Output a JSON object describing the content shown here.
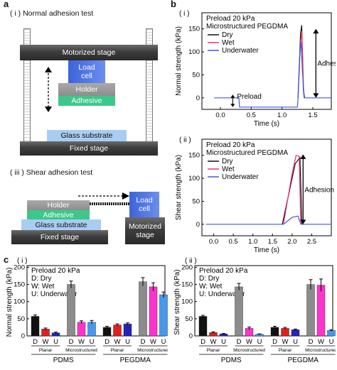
{
  "panel_a": {
    "letter": "a",
    "normal_title": "( i ) Normal adhesion test",
    "shear_title": "( iii ) Shear adhesion test",
    "motorized_stage": "Motorized stage",
    "load_cell": "Load cell",
    "holder": "Holder",
    "adhesive": "Adhesive",
    "glass_substrate": "Glass substrate",
    "fixed_stage": "Fixed stage",
    "shear_holder": "Holder",
    "shear_adhesive": "Adhesive",
    "shear_glass": "Glass substrate",
    "shear_fixed": "Fixed stage",
    "shear_load_cell": "Load cell",
    "shear_motorized": "Motorized stage"
  },
  "panel_b": {
    "letter": "b",
    "colors": {
      "dry": "#111111",
      "wet": "#e8336a",
      "underwater": "#4455dd"
    },
    "chart_data": [
      {
        "type": "line",
        "label": "( i )",
        "annotation_lines": [
          "Preload 20 kPa",
          "Microstructured PEGDMA"
        ],
        "legend": [
          "Dry",
          "Wet",
          "Underwater"
        ],
        "xlabel": "Time (s)",
        "ylabel": "Normal strength (kPa)",
        "xlim": [
          -0.3,
          1.8
        ],
        "ylim": [
          -25,
          185
        ],
        "xticks": [
          "0.0",
          "0.5",
          "1.0",
          "1.5"
        ],
        "yticks": [
          "0",
          "50",
          "100",
          "150"
        ],
        "arrow_labels": [
          "Preload",
          "Adhesion"
        ],
        "series": [
          {
            "name": "Dry",
            "x": [
              1.26,
              1.3,
              1.32,
              1.33,
              1.345,
              1.36
            ],
            "y": [
              0,
              140,
              158,
              100,
              20,
              0
            ]
          },
          {
            "name": "Wet",
            "x": [
              1.26,
              1.3,
              1.32,
              1.335,
              1.35,
              1.37
            ],
            "y": [
              0,
              120,
              145,
              90,
              15,
              0
            ]
          },
          {
            "name": "Underwater",
            "x": [
              -0.1,
              0.3,
              0.31,
              1.25,
              1.26,
              1.29,
              1.31,
              1.33,
              1.36,
              1.8
            ],
            "y": [
              0,
              0,
              -20,
              -20,
              0,
              100,
              122,
              60,
              0,
              0
            ]
          }
        ]
      },
      {
        "type": "line",
        "label": "( ii )",
        "annotation_lines": [
          "Preload 20 kPa",
          "Microstructured PEGDMA"
        ],
        "legend": [
          "Dry",
          "Wet",
          "Underwater"
        ],
        "xlabel": "Time (s)",
        "ylabel": "Shear strength (kPa)",
        "xlim": [
          -0.3,
          3.0
        ],
        "ylim": [
          -25,
          185
        ],
        "xticks": [
          "0.0",
          "0.5",
          "1.0",
          "1.5",
          "2.0",
          "2.5"
        ],
        "yticks": [
          "0",
          "50",
          "100",
          "150"
        ],
        "arrow_labels": [
          "Adhesion"
        ],
        "series": [
          {
            "name": "Dry",
            "x": [
              1.75,
              1.95,
              2.08,
              2.2,
              2.25,
              2.3
            ],
            "y": [
              0,
              80,
              132,
              145,
              0,
              0
            ]
          },
          {
            "name": "Wet",
            "x": [
              1.78,
              2.0,
              2.1,
              2.18,
              2.22,
              2.3
            ],
            "y": [
              0,
              110,
              150,
              148,
              0,
              0
            ]
          },
          {
            "name": "Underwater",
            "x": [
              -0.2,
              1.78,
              2.0,
              2.15,
              2.2,
              2.25,
              3.0
            ],
            "y": [
              0,
              0,
              15,
              18,
              5,
              0,
              0
            ]
          }
        ]
      }
    ]
  },
  "panel_c": {
    "letter": "c",
    "chart_data": [
      {
        "type": "bar",
        "label": "( i )",
        "annotation_lines": [
          "Preload 20 kPa",
          "D: Dry",
          "W: Wet",
          "U: Underwater"
        ],
        "ylabel": "Normal strength (kPa)",
        "ylim": [
          0,
          205
        ],
        "yticks": [
          "0",
          "50",
          "100",
          "150",
          "200"
        ],
        "bars": [
          {
            "cat": "D",
            "value": 57,
            "err": 4,
            "color": "#111111"
          },
          {
            "cat": "W",
            "value": 20,
            "err": 3,
            "color": "#e0201e"
          },
          {
            "cat": "U",
            "value": 9,
            "err": 2,
            "color": "#2222bb"
          },
          {
            "cat": "D",
            "value": 150,
            "err": 10,
            "color": "#8c8c8c"
          },
          {
            "cat": "W",
            "value": 40,
            "err": 4,
            "color": "#ff33cc"
          },
          {
            "cat": "U",
            "value": 40,
            "err": 5,
            "color": "#4499ee"
          },
          {
            "cat": "D",
            "value": 25,
            "err": 3,
            "color": "#111111"
          },
          {
            "cat": "W",
            "value": 32,
            "err": 3,
            "color": "#e0201e"
          },
          {
            "cat": "U",
            "value": 35,
            "err": 3,
            "color": "#2222bb"
          },
          {
            "cat": "D",
            "value": 158,
            "err": 12,
            "color": "#8c8c8c"
          },
          {
            "cat": "W",
            "value": 143,
            "err": 12,
            "color": "#ff33cc"
          },
          {
            "cat": "U",
            "value": 120,
            "err": 8,
            "color": "#4499ee"
          }
        ],
        "groups": [
          "Planar",
          "Microstructured",
          "Planar",
          "Microstructured"
        ],
        "materials": [
          "PDMS",
          "PEGDMA"
        ]
      },
      {
        "type": "bar",
        "label": "( ii )",
        "annotation_lines": [
          "Preload 20 kPa",
          "D: Dry",
          "W: Wet",
          "U: Underwater"
        ],
        "ylabel": "Shear strength (kPa)",
        "ylim": [
          0,
          205
        ],
        "yticks": [
          "0",
          "50",
          "100",
          "150",
          "200"
        ],
        "bars": [
          {
            "cat": "D",
            "value": 57,
            "err": 3,
            "color": "#111111"
          },
          {
            "cat": "W",
            "value": 10,
            "err": 2,
            "color": "#e0201e"
          },
          {
            "cat": "U",
            "value": 6,
            "err": 1,
            "color": "#2222bb"
          },
          {
            "cat": "D",
            "value": 143,
            "err": 10,
            "color": "#8c8c8c"
          },
          {
            "cat": "W",
            "value": 22,
            "err": 4,
            "color": "#ff33cc"
          },
          {
            "cat": "U",
            "value": 5,
            "err": 1,
            "color": "#4499ee"
          },
          {
            "cat": "D",
            "value": 25,
            "err": 3,
            "color": "#111111"
          },
          {
            "cat": "W",
            "value": 22,
            "err": 3,
            "color": "#e0201e"
          },
          {
            "cat": "U",
            "value": 18,
            "err": 2,
            "color": "#2222bb"
          },
          {
            "cat": "D",
            "value": 150,
            "err": 14,
            "color": "#8c8c8c"
          },
          {
            "cat": "W",
            "value": 148,
            "err": 18,
            "color": "#ff33cc"
          },
          {
            "cat": "U",
            "value": 16,
            "err": 2,
            "color": "#4499ee"
          }
        ],
        "groups": [
          "Planar",
          "Microstructured",
          "Planar",
          "Microstructured"
        ],
        "materials": [
          "PDMS",
          "PEGDMA"
        ]
      }
    ]
  }
}
